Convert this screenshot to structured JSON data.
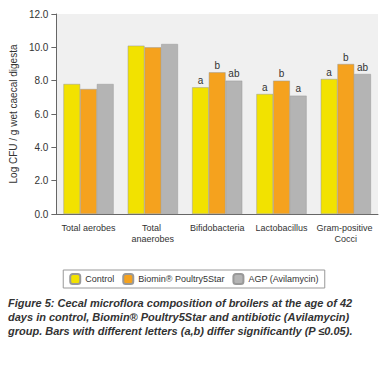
{
  "chart_data": {
    "type": "bar",
    "y_label": "Log CFU / g wet caecal digesta",
    "categories": [
      "Total aerobes",
      "Total anaerobes",
      "Bifidobacteria",
      "Lactobacillus",
      "Gram-positive Cocci"
    ],
    "series": [
      {
        "name": "Control",
        "color": "#f2e200",
        "values": [
          7.8,
          10.1,
          7.6,
          7.2,
          8.1
        ]
      },
      {
        "name": "Biomin® Poultry5Star",
        "color": "#f5a21e",
        "values": [
          7.5,
          10.0,
          8.5,
          8.0,
          9.0
        ]
      },
      {
        "name": "AGP (Avilamycin)",
        "color": "#b4b4b4",
        "values": [
          7.8,
          10.2,
          8.0,
          7.1,
          8.4
        ]
      }
    ],
    "annotations": [
      {
        "series": "Control",
        "category": "Bifidobacteria",
        "text": "a"
      },
      {
        "series": "Biomin® Poultry5Star",
        "category": "Bifidobacteria",
        "text": "b"
      },
      {
        "series": "AGP (Avilamycin)",
        "category": "Bifidobacteria",
        "text": "ab"
      },
      {
        "series": "Control",
        "category": "Lactobacillus",
        "text": "a"
      },
      {
        "series": "Biomin® Poultry5Star",
        "category": "Lactobacillus",
        "text": "b"
      },
      {
        "series": "AGP (Avilamycin)",
        "category": "Lactobacillus",
        "text": "a"
      },
      {
        "series": "Control",
        "category": "Gram-positive Cocci",
        "text": "a"
      },
      {
        "series": "Biomin® Poultry5Star",
        "category": "Gram-positive Cocci",
        "text": "b"
      },
      {
        "series": "AGP (Avilamycin)",
        "category": "Gram-positive Cocci",
        "text": "ab"
      }
    ],
    "ylim": [
      0,
      12
    ],
    "yticks": [
      {
        "value": 0,
        "label": "0.0"
      },
      {
        "value": 2,
        "label": "2.0"
      },
      {
        "value": 4,
        "label": "4.0"
      },
      {
        "value": 6,
        "label": "6.0"
      },
      {
        "value": 8,
        "label": "8.0"
      },
      {
        "value": 10,
        "label": "10.0"
      },
      {
        "value": 12,
        "label": "12.0"
      }
    ],
    "grid": false,
    "legend": "bottom",
    "caption": "Figure 5: Cecal microflora composition of broilers at the age of 42 days in control, Biomin® Poultry5Star and antibiotic (Avilamycin) group. Bars with different letters (a,b) differ significantly (P ≤0.05)."
  }
}
